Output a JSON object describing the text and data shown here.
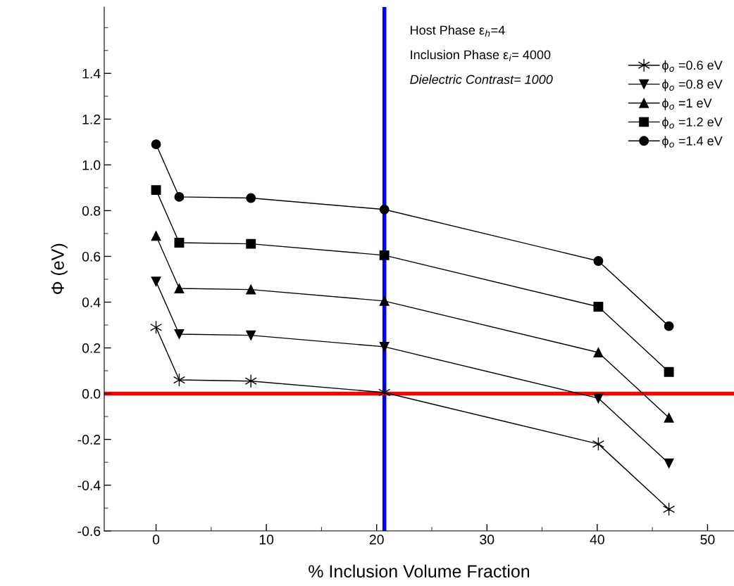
{
  "chart_data": {
    "type": "line",
    "xlabel": "% Inclusion Volume Fraction",
    "ylabel": "Φ (eV)",
    "xlim": [
      -4.7,
      52.4
    ],
    "ylim": [
      -0.6,
      1.69
    ],
    "xticks": [
      0,
      10,
      20,
      30,
      40,
      50
    ],
    "yticks": [
      {
        "value": -0.6,
        "label": "-0.6"
      },
      {
        "value": -0.4,
        "label": "-0.4"
      },
      {
        "value": -0.2,
        "label": "-0.2"
      },
      {
        "value": 0,
        "label": "0.0"
      },
      {
        "value": 0.2,
        "label": "0.2"
      },
      {
        "value": 0.4,
        "label": "0.4"
      },
      {
        "value": 0.6,
        "label": "0.6"
      },
      {
        "value": 0.8,
        "label": "0.8"
      },
      {
        "value": 1.0,
        "label": "1.0"
      },
      {
        "value": 1.2,
        "label": "1.2"
      },
      {
        "value": 1.4,
        "label": "1.4"
      }
    ],
    "x": [
      0,
      2.1,
      8.6,
      20.7,
      40.1,
      46.5
    ],
    "series": [
      {
        "name": "ϕ$_{o}$ =0.6 eV",
        "color": "#000000",
        "marker": "cross",
        "values": [
          0.29,
          0.06,
          0.055,
          0.005,
          -0.22,
          -0.505
        ]
      },
      {
        "name": "ϕ$_{o}$ =0.8 eV",
        "color": "#000000",
        "marker": "triangle_down",
        "values": [
          0.49,
          0.26,
          0.255,
          0.205,
          -0.02,
          -0.305
        ]
      },
      {
        "name": "ϕ$_{o}$ =1 eV",
        "color": "#000000",
        "marker": "triangle",
        "values": [
          0.69,
          0.46,
          0.455,
          0.405,
          0.18,
          -0.105
        ]
      },
      {
        "name": "ϕ$_{o}$ =1.2 eV",
        "color": "#000000",
        "marker": "square",
        "values": [
          0.89,
          0.66,
          0.655,
          0.605,
          0.38,
          0.095
        ]
      },
      {
        "name": "ϕ$_{o}$ =1.4 eV",
        "color": "#000000",
        "marker": "circle",
        "values": [
          1.09,
          0.86,
          0.855,
          0.805,
          0.58,
          0.295
        ]
      }
    ],
    "ref_lines": [
      {
        "axis": "x",
        "value": 20.7,
        "color": "#0000ff"
      },
      {
        "axis": "y",
        "value": 0,
        "color": "#ff0000"
      }
    ],
    "annotations": [
      "Host Phase ε$_{h}$=4",
      "Inclusion Phase ε$_{i}$= 4000",
      "Dielectric Contrast= 1000"
    ],
    "legend": "top right",
    "grid": false,
    "line_style": "solid"
  }
}
